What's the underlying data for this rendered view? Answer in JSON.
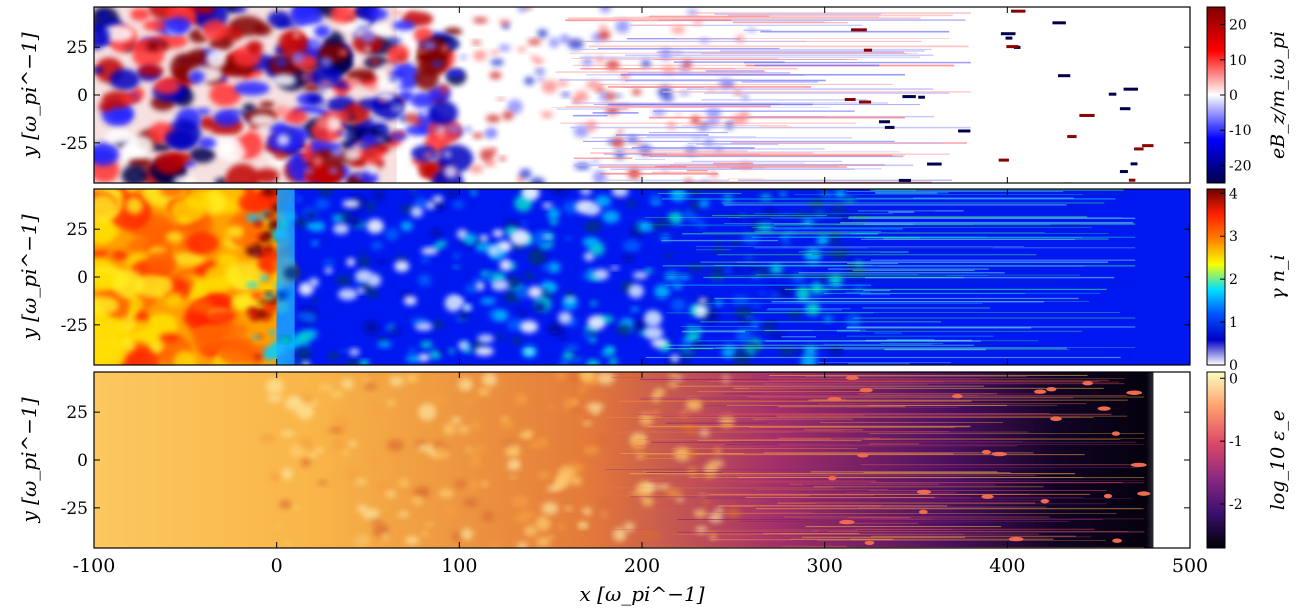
{
  "figure": {
    "xlabel": "x [ω_pi^−1]",
    "x_ticks": [
      -100,
      0,
      100,
      200,
      300,
      400,
      500
    ],
    "xlim": [
      -100,
      500
    ]
  },
  "chart_data": [
    {
      "type": "heatmap",
      "panel": "top",
      "ylabel": "y [ω_pi^−1]",
      "xlim": [
        -100,
        500
      ],
      "ylim": [
        -46,
        46
      ],
      "y_ticks": [
        -25,
        0,
        25
      ],
      "colorbar": {
        "label": "eB_z/m_iω_pi",
        "range": [
          -25,
          25
        ],
        "ticks": [
          -20,
          -10,
          0,
          10,
          20
        ],
        "colormap": "seismic",
        "colors": [
          "#00004c",
          "#0000ff",
          "#ffffff",
          "#ff0000",
          "#7f0000"
        ]
      }
    },
    {
      "type": "heatmap",
      "panel": "middle",
      "ylabel": "y [ω_pi^−1]",
      "xlim": [
        -100,
        500
      ],
      "ylim": [
        -46,
        46
      ],
      "y_ticks": [
        -25,
        0,
        25
      ],
      "colorbar": {
        "label": "γ n_i",
        "range": [
          0,
          4.1
        ],
        "ticks": [
          0,
          1,
          2,
          3,
          4
        ],
        "colormap": "jet-like",
        "colors": [
          "#ffffff",
          "#0000c8",
          "#0050ff",
          "#00e0ff",
          "#f8ff00",
          "#ff8000",
          "#ff2000",
          "#700000"
        ]
      }
    },
    {
      "type": "heatmap",
      "panel": "bottom",
      "ylabel": "y [ω_pi^−1]",
      "xlim": [
        -100,
        500
      ],
      "ylim": [
        -46,
        46
      ],
      "y_ticks": [
        -25,
        0,
        25
      ],
      "colorbar": {
        "label": "log_10 ε_e",
        "range": [
          -2.7,
          0.1
        ],
        "ticks": [
          -2,
          -1,
          0
        ],
        "colormap": "inferno",
        "colors": [
          "#000004",
          "#3b0f70",
          "#8c2981",
          "#de4968",
          "#fe9f6d",
          "#fcfdbf"
        ]
      }
    }
  ]
}
